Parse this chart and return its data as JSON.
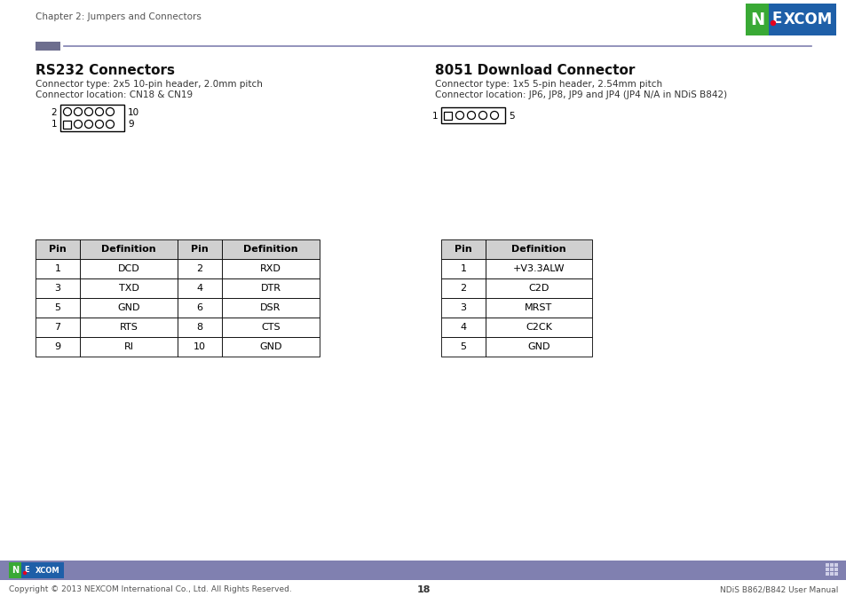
{
  "page_title": "Chapter 2: Jumpers and Connectors",
  "page_number": "18",
  "footer_left": "Copyright © 2013 NEXCOM International Co., Ltd. All Rights Reserved.",
  "footer_right": "NDiS B862/B842 User Manual",
  "section1_title": "RS232 Connectors",
  "section1_line1": "Connector type: 2x5 10-pin header, 2.0mm pitch",
  "section1_line2": "Connector location: CN18 & CN19",
  "section2_title": "8051 Download Connector",
  "section2_line1": "Connector type: 1x5 5-pin header, 2.54mm pitch",
  "section2_line2": "Connector location: JP6, JP8, JP9 and JP4 (JP4 N/A in NDiS B842)",
  "table1_headers": [
    "Pin",
    "Definition",
    "Pin",
    "Definition"
  ],
  "table1_rows": [
    [
      "1",
      "DCD",
      "2",
      "RXD"
    ],
    [
      "3",
      "TXD",
      "4",
      "DTR"
    ],
    [
      "5",
      "GND",
      "6",
      "DSR"
    ],
    [
      "7",
      "RTS",
      "8",
      "CTS"
    ],
    [
      "9",
      "RI",
      "10",
      "GND"
    ]
  ],
  "table2_headers": [
    "Pin",
    "Definition"
  ],
  "table2_rows": [
    [
      "1",
      "+V3.3ALW"
    ],
    [
      "2",
      "C2D"
    ],
    [
      "3",
      "MRST"
    ],
    [
      "4",
      "C2CK"
    ],
    [
      "5",
      "GND"
    ]
  ],
  "bg_color": "#ffffff",
  "accent_color": "#8080b0",
  "accent_small_color": "#6d6e8e",
  "table_header_bg": "#d0d0d0",
  "nexcom_blue": "#1e5fa8",
  "nexcom_green": "#39a935",
  "nexcom_red": "#e5001e",
  "footer_bar_color": "#8080b0",
  "header_text_color": "#555555",
  "section_title_color": "#111111",
  "body_text_color": "#333333"
}
